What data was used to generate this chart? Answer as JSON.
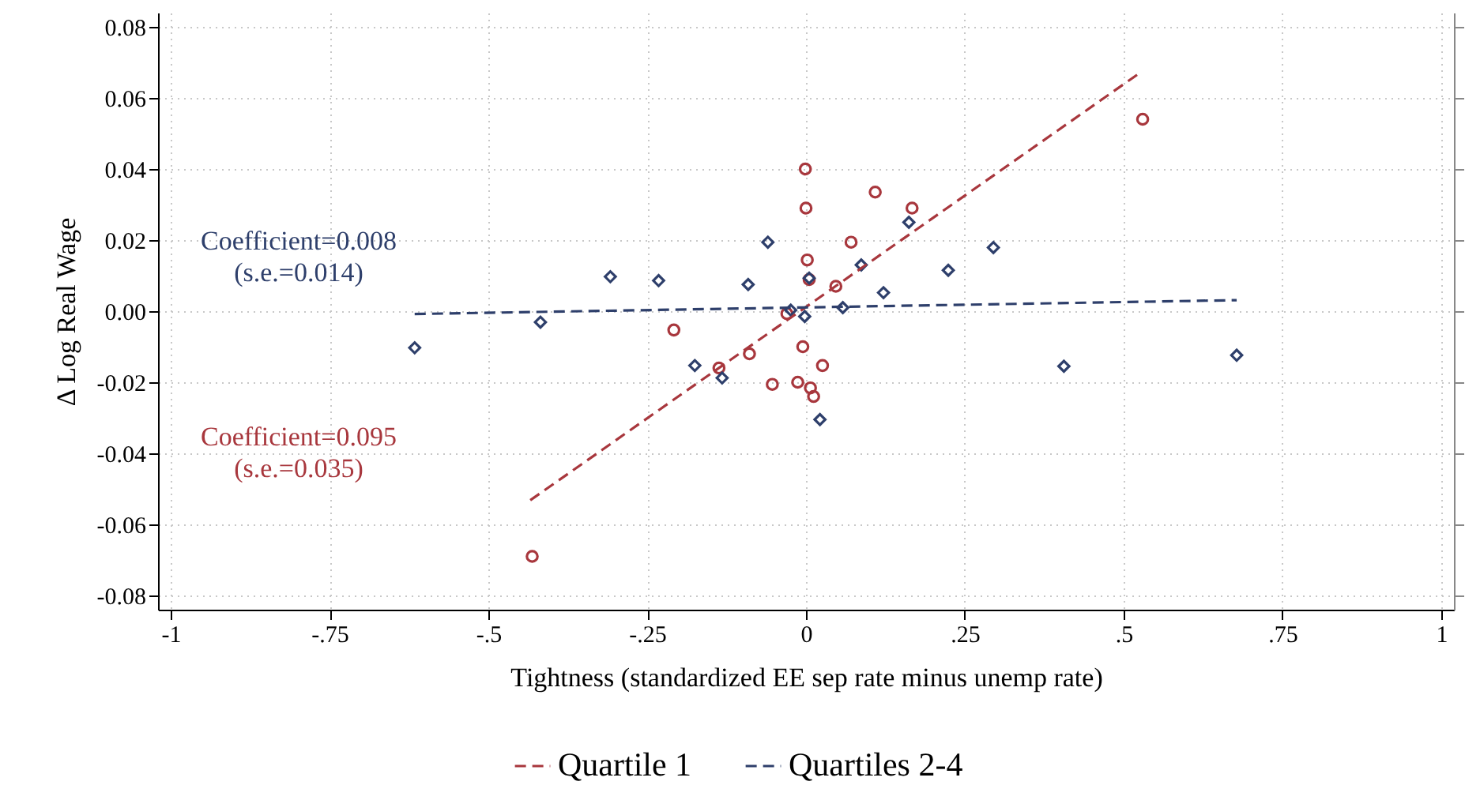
{
  "chart_data": {
    "type": "scatter",
    "xlabel": "Tightness (standardized EE sep rate minus unemp rate)",
    "ylabel": "Δ Log Real Wage",
    "annotations": [
      "Coefficient=0.008\n(s.e.=0.014)",
      "Coefficient=0.095\n(s.e.=0.035)"
    ],
    "xlim": [
      -1.02,
      1.02
    ],
    "ylim": [
      -0.084,
      0.084
    ],
    "xticks": [
      -1,
      {
        "value": -0.75,
        "label": "-.75"
      },
      {
        "value": -0.5,
        "label": "-.5"
      },
      {
        "value": -0.25,
        "label": "-.25"
      },
      0,
      {
        "value": 0.25,
        "label": ".25"
      },
      {
        "value": 0.5,
        "label": ".5"
      },
      {
        "value": 0.75,
        "label": ".75"
      },
      1
    ],
    "yticks": [
      -0.08,
      -0.06,
      -0.04,
      -0.02,
      {
        "value": 0,
        "label": "0.00"
      },
      0.02,
      0.04,
      0.06,
      0.08
    ],
    "grid": true,
    "legend": "bottom",
    "series": [
      {
        "color": "#a8373d",
        "marker": "circle",
        "x": [
          -0.431,
          -0.208,
          -0.137,
          -0.089,
          -0.053,
          -0.013,
          0.007,
          0.012,
          0.026,
          -0.005,
          -0.03,
          -0.001,
          0.0,
          0.002,
          0.005,
          0.047,
          0.071,
          0.109,
          0.167,
          0.53
        ],
        "values": [
          -0.069,
          -0.0053,
          -0.016,
          -0.012,
          -0.0206,
          -0.02,
          -0.0216,
          -0.024,
          -0.0153,
          -0.01,
          -0.0007,
          0.04,
          0.029,
          0.0144,
          0.0089,
          0.007,
          0.0194,
          0.0335,
          0.029,
          0.054
        ]
      },
      {
        "color": "#2e3f6b",
        "marker": "diamond",
        "x": [
          -0.616,
          -0.418,
          -0.308,
          -0.232,
          -0.175,
          -0.132,
          -0.091,
          -0.06,
          -0.024,
          -0.002,
          0.005,
          0.022,
          0.058,
          0.087,
          0.122,
          0.162,
          0.224,
          0.295,
          0.406,
          0.678
        ],
        "values": [
          -0.0103,
          -0.0031,
          0.0097,
          0.0086,
          -0.0153,
          -0.0188,
          0.0075,
          0.0194,
          0.0003,
          -0.0015,
          0.0093,
          -0.0305,
          0.001,
          0.013,
          0.0052,
          0.025,
          0.0115,
          0.0179,
          -0.0155,
          -0.0124
        ]
      },
      {
        "type": "line",
        "name": "Quartile 1",
        "color": "#a8373d",
        "line_style": "dashed",
        "x": [
          -0.434,
          0.522
        ],
        "values": [
          -0.0532,
          0.0666
        ]
      },
      {
        "type": "line",
        "name": "Quartiles 2-4",
        "color": "#2e3f6b",
        "line_style": "dashed",
        "x": [
          -0.616,
          0.678
        ],
        "values": [
          -0.0008,
          0.0031
        ]
      }
    ]
  }
}
